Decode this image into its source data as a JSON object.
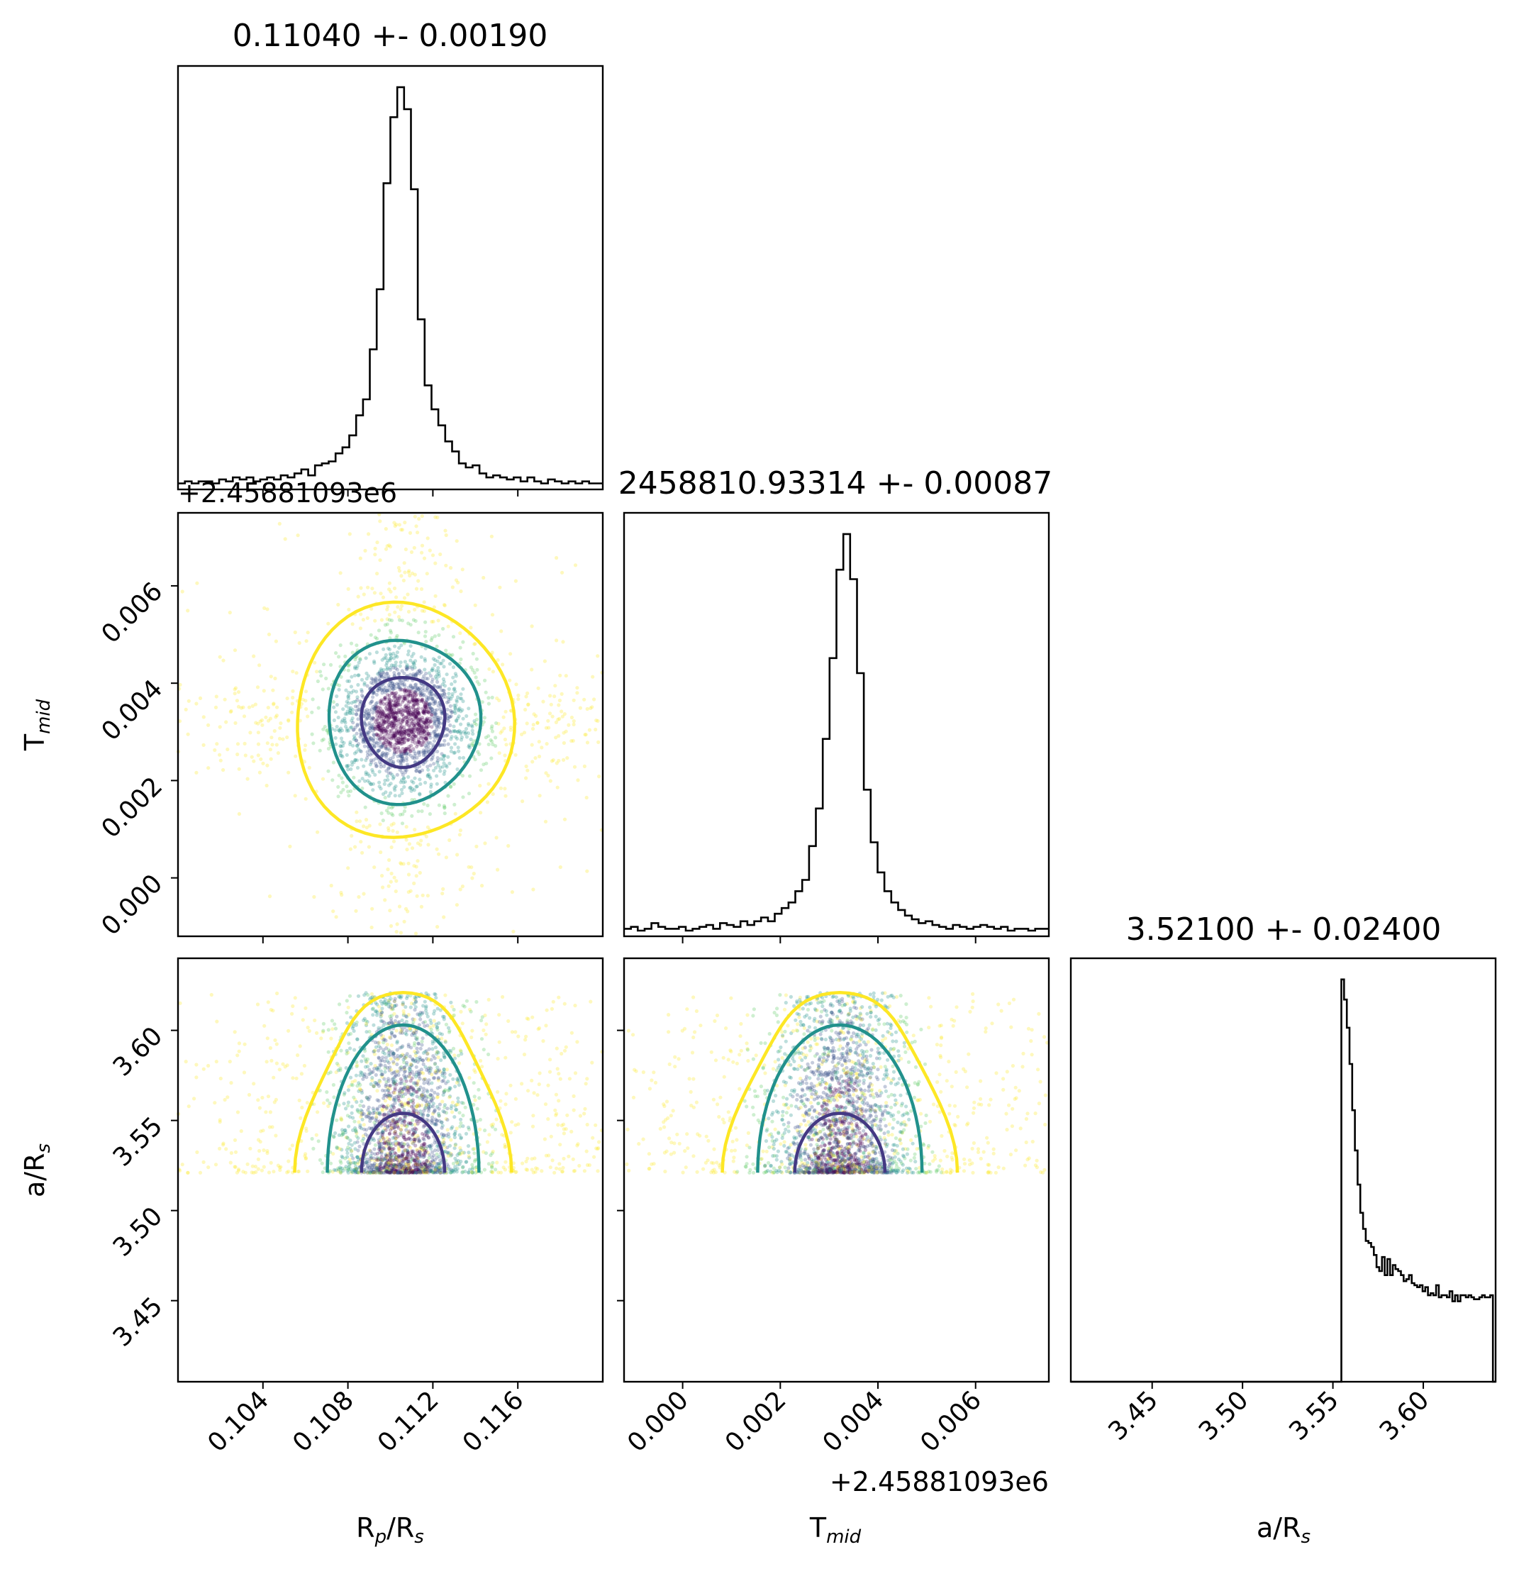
{
  "colors": {
    "scatter": [
      "#440154",
      "#3b528b",
      "#21918c",
      "#5ec962",
      "#fde725"
    ],
    "contour_inner": "#443983",
    "contour_mid": "#21918c",
    "contour_outer": "#fde725",
    "line": "#000000"
  },
  "chart_data": {
    "type": "corner",
    "parameters": [
      {
        "key": "rp",
        "label": "R",
        "sub": "p",
        "label_suffix": "/R",
        "sub2": "s",
        "range": [
          0.1,
          0.12
        ],
        "ticks": [
          0.104,
          0.108,
          0.112,
          0.116
        ],
        "tick_labels": [
          "0.104",
          "0.108",
          "0.112",
          "0.116"
        ]
      },
      {
        "key": "tmid",
        "label": "T",
        "sub": "mid",
        "label_suffix": "",
        "sub2": "",
        "range": [
          -0.0012,
          0.0075
        ],
        "ticks": [
          0.0,
          0.002,
          0.004,
          0.006
        ],
        "tick_labels": [
          "0.000",
          "0.002",
          "0.004",
          "0.006"
        ],
        "offset_label": "+2.45881093e6"
      },
      {
        "key": "ars",
        "label": "a/R",
        "sub": "s",
        "label_suffix": "",
        "sub2": "",
        "range": [
          3.405,
          3.64
        ],
        "ticks": [
          3.45,
          3.5,
          3.55,
          3.6
        ],
        "tick_labels": [
          "3.45",
          "3.50",
          "3.55",
          "3.60"
        ]
      }
    ],
    "titles": [
      "0.11040 +- 0.00190",
      "2458810.93314 +- 0.00087",
      "3.52100 +- 0.02400"
    ],
    "histograms": {
      "rp": [
        3,
        4,
        3,
        4,
        4,
        3,
        5,
        4,
        6,
        5,
        6,
        4,
        5,
        6,
        5,
        7,
        6,
        8,
        10,
        7,
        12,
        13,
        14,
        18,
        21,
        27,
        37,
        45,
        70,
        100,
        153,
        186,
        201,
        190,
        150,
        85,
        52,
        40,
        32,
        24,
        19,
        13,
        11,
        12,
        8,
        6,
        7,
        6,
        5,
        6,
        4,
        6,
        4,
        3,
        5,
        4,
        3,
        4,
        3,
        4,
        3,
        3
      ],
      "tmid": [
        4,
        5,
        3,
        4,
        7,
        5,
        4,
        4,
        5,
        3,
        4,
        5,
        6,
        4,
        7,
        6,
        5,
        8,
        6,
        8,
        10,
        8,
        12,
        15,
        18,
        24,
        30,
        48,
        68,
        105,
        148,
        195,
        214,
        190,
        140,
        78,
        50,
        34,
        24,
        18,
        14,
        11,
        9,
        7,
        8,
        6,
        5,
        4,
        6,
        5,
        4,
        5,
        6,
        5,
        4,
        5,
        3,
        4,
        4,
        3,
        4,
        4
      ],
      "ars": [
        0,
        0,
        0,
        0,
        0,
        0,
        0,
        0,
        0,
        0,
        0,
        0,
        0,
        0,
        0,
        0,
        0,
        0,
        0,
        0,
        0,
        0,
        0,
        0,
        0,
        0,
        0,
        0,
        0,
        0,
        0,
        0,
        0,
        0,
        0,
        0,
        0,
        0,
        0,
        0,
        0,
        0,
        0,
        0,
        0,
        0,
        0,
        0,
        0,
        0,
        0,
        0,
        0,
        0,
        0,
        0,
        0,
        0,
        0,
        0,
        0,
        0,
        0,
        0,
        0,
        0,
        0,
        0,
        0,
        0,
        0,
        0,
        0,
        0,
        0,
        0,
        0,
        0,
        0,
        0,
        0,
        0,
        0,
        0,
        0,
        0,
        0,
        0,
        0,
        0,
        0,
        0,
        0,
        0,
        0,
        0,
        0,
        0,
        0,
        0,
        200,
        190,
        176,
        158,
        135,
        115,
        98,
        84,
        76,
        70,
        69,
        67,
        63,
        57,
        55,
        62,
        53,
        61,
        53,
        58,
        56,
        55,
        53,
        50,
        51,
        53,
        49,
        48,
        47,
        48,
        45,
        47,
        43,
        44,
        43,
        48,
        42,
        43,
        43,
        42,
        45,
        40,
        43,
        40,
        43,
        43,
        42,
        43,
        42,
        41,
        41,
        42,
        43,
        42,
        42,
        43,
        0
      ]
    },
    "posterior": {
      "rp": {
        "mean": 0.1106,
        "sigma": 0.0014
      },
      "tmid": {
        "mean": 0.00322,
        "sigma": 0.00066
      },
      "ars": {
        "min": 3.521,
        "max": 3.621
      }
    },
    "contour_levels": 3,
    "grid": false,
    "legend": "none"
  }
}
